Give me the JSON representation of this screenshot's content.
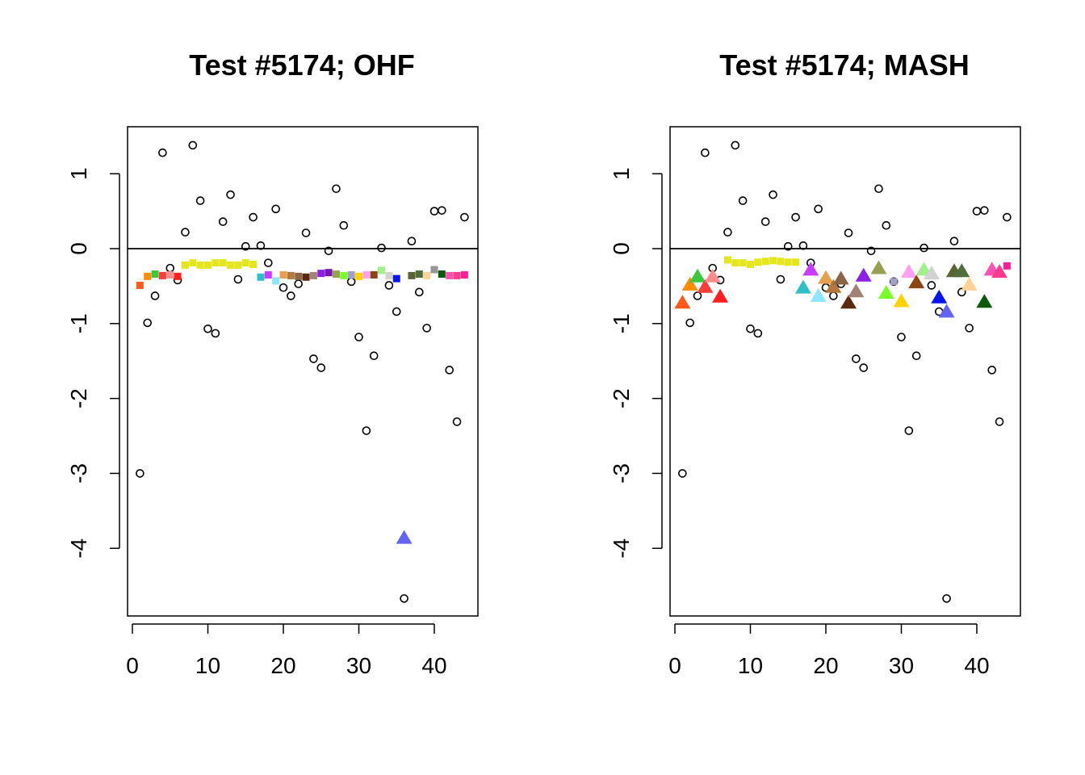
{
  "chart_data": [
    {
      "type": "scatter",
      "title": "Test #5174; OHF",
      "xlabel": "",
      "ylabel": "",
      "xlim": [
        0,
        44
      ],
      "ylim": [
        -4.75,
        1.65
      ],
      "xticks": [
        0,
        10,
        20,
        30,
        40
      ],
      "xtick_labels": [
        "0",
        "10",
        "20",
        "30",
        "40"
      ],
      "yticks": [
        1,
        0,
        -1,
        -2,
        -3,
        -4
      ],
      "ytick_labels": [
        "1",
        "0",
        "-1",
        "-2",
        "-3",
        "-4"
      ],
      "hline": 0,
      "grid": false,
      "series": [
        {
          "marker": "open-circle",
          "color": "#000000",
          "x": [
            1,
            2,
            3,
            4,
            5,
            6,
            7,
            8,
            9,
            10,
            11,
            12,
            13,
            14,
            15,
            16,
            17,
            18,
            19,
            20,
            21,
            22,
            23,
            24,
            25,
            26,
            27,
            28,
            29,
            30,
            31,
            32,
            33,
            34,
            35,
            36,
            37,
            38,
            39,
            40,
            41,
            42,
            43,
            44
          ],
          "y": [
            -3.0,
            -0.99,
            -0.63,
            1.28,
            -0.26,
            -0.42,
            0.22,
            1.38,
            0.64,
            -1.07,
            -1.13,
            0.36,
            0.72,
            -0.41,
            0.03,
            0.42,
            0.04,
            -0.19,
            0.53,
            -0.52,
            -0.63,
            -0.47,
            0.21,
            -1.47,
            -1.59,
            -0.03,
            0.8,
            0.31,
            -0.44,
            -1.18,
            -2.43,
            -1.43,
            0.01,
            -0.49,
            -0.84,
            -4.67,
            0.1,
            -0.58,
            -1.06,
            0.5,
            0.51,
            -1.62,
            -2.31,
            0.42
          ]
        },
        {
          "marker": "filled-square",
          "x": [
            1,
            2,
            3,
            4,
            5,
            6,
            7,
            8,
            9,
            10,
            11,
            12,
            13,
            14,
            15,
            16,
            17,
            18,
            19,
            20,
            21,
            22,
            23,
            24,
            25,
            26,
            27,
            28,
            29,
            30,
            31,
            32,
            33,
            34,
            35,
            37,
            38,
            39,
            40,
            41,
            42,
            43,
            44
          ],
          "y": [
            -0.49,
            -0.37,
            -0.34,
            -0.36,
            -0.35,
            -0.37,
            -0.22,
            -0.19,
            -0.22,
            -0.22,
            -0.19,
            -0.19,
            -0.22,
            -0.22,
            -0.19,
            -0.21,
            -0.38,
            -0.35,
            -0.43,
            -0.35,
            -0.36,
            -0.37,
            -0.38,
            -0.36,
            -0.33,
            -0.32,
            -0.34,
            -0.36,
            -0.35,
            -0.37,
            -0.35,
            -0.35,
            -0.29,
            -0.36,
            -0.4,
            -0.36,
            -0.34,
            -0.36,
            -0.28,
            -0.34,
            -0.36,
            -0.36,
            -0.35
          ],
          "colors": [
            "#FF5A1A",
            "#FF8C00",
            "#3CC83C",
            "#FF3C3C",
            "#FF8C8C",
            "#FF1E1E",
            "#E6E61E",
            "#E6E61E",
            "#E6E61E",
            "#E6E61E",
            "#E6E61E",
            "#E6E61E",
            "#E6E61E",
            "#E6E61E",
            "#E6E61E",
            "#E6E61E",
            "#2DBEC8",
            "#C83CFF",
            "#8CE6FF",
            "#E6A050",
            "#B4783C",
            "#8C6446",
            "#5A2810",
            "#A08278",
            "#8C1EE6",
            "#7814B4",
            "#96A050",
            "#78FF28",
            "#A0A0C8",
            "#FFD200",
            "#FFA0F0",
            "#8C4614",
            "#A0F08C",
            "#D2D2D2",
            "#0A14F0",
            "#5A6432",
            "#506E3C",
            "#FFD296",
            "#969696",
            "#0A5A0A",
            "#FF50B4",
            "#FF3C8C",
            "#FF1E96"
          ]
        },
        {
          "marker": "filled-triangle",
          "x": [
            36
          ],
          "y": [
            -3.87
          ],
          "colors": [
            "#6464F0"
          ]
        }
      ]
    },
    {
      "type": "scatter",
      "title": "Test #5174; MASH",
      "xlabel": "",
      "ylabel": "",
      "xlim": [
        0,
        44
      ],
      "ylim": [
        -4.75,
        1.65
      ],
      "xticks": [
        0,
        10,
        20,
        30,
        40
      ],
      "xtick_labels": [
        "0",
        "10",
        "20",
        "30",
        "40"
      ],
      "yticks": [
        1,
        0,
        -1,
        -2,
        -3,
        -4
      ],
      "ytick_labels": [
        "1",
        "0",
        "-1",
        "-2",
        "-3",
        "-4"
      ],
      "hline": 0,
      "grid": false,
      "series": [
        {
          "marker": "open-circle",
          "color": "#000000",
          "x": [
            1,
            2,
            3,
            4,
            5,
            6,
            7,
            8,
            9,
            10,
            11,
            12,
            13,
            14,
            15,
            16,
            17,
            18,
            19,
            20,
            21,
            22,
            23,
            24,
            25,
            26,
            27,
            28,
            29,
            30,
            31,
            32,
            33,
            34,
            35,
            36,
            37,
            38,
            39,
            40,
            41,
            42,
            43,
            44
          ],
          "y": [
            -3.0,
            -0.99,
            -0.63,
            1.28,
            -0.26,
            -0.42,
            0.22,
            1.38,
            0.64,
            -1.07,
            -1.13,
            0.36,
            0.72,
            -0.41,
            0.03,
            0.42,
            0.04,
            -0.19,
            0.53,
            -0.52,
            -0.63,
            -0.47,
            0.21,
            -1.47,
            -1.59,
            -0.03,
            0.8,
            0.31,
            -0.44,
            -1.18,
            -2.43,
            -1.43,
            0.01,
            -0.49,
            -0.84,
            -4.67,
            0.1,
            -0.58,
            -1.06,
            0.5,
            0.51,
            -1.62,
            -2.31,
            0.42
          ]
        },
        {
          "marker": "filled-square",
          "x": [
            7,
            8,
            9,
            10,
            11,
            12,
            13,
            14,
            15,
            16,
            29,
            44
          ],
          "y": [
            -0.15,
            -0.19,
            -0.19,
            -0.21,
            -0.18,
            -0.17,
            -0.16,
            -0.17,
            -0.18,
            -0.18,
            -0.44,
            -0.23
          ],
          "colors": [
            "#E6E61E",
            "#E6E61E",
            "#E6E61E",
            "#E6E61E",
            "#E6E61E",
            "#E6E61E",
            "#E6E61E",
            "#E6E61E",
            "#E6E61E",
            "#E6E61E",
            "#A0A0C8",
            "#FF1E96"
          ]
        },
        {
          "marker": "filled-triangle",
          "x": [
            1,
            2,
            3,
            4,
            5,
            6,
            17,
            18,
            19,
            20,
            21,
            22,
            23,
            24,
            25,
            27,
            28,
            30,
            31,
            32,
            33,
            34,
            35,
            36,
            37,
            38,
            39,
            41,
            42,
            43
          ],
          "y": [
            -0.73,
            -0.49,
            -0.38,
            -0.52,
            -0.38,
            -0.65,
            -0.53,
            -0.29,
            -0.64,
            -0.4,
            -0.52,
            -0.41,
            -0.73,
            -0.58,
            -0.37,
            -0.27,
            -0.6,
            -0.71,
            -0.32,
            -0.46,
            -0.29,
            -0.34,
            -0.66,
            -0.85,
            -0.31,
            -0.31,
            -0.49,
            -0.72,
            -0.29,
            -0.32
          ],
          "colors": [
            "#FF5A1A",
            "#FF8C00",
            "#3CC83C",
            "#FF3C3C",
            "#FF8C8C",
            "#FF1E1E",
            "#2DBEC8",
            "#C83CFF",
            "#8CE6FF",
            "#E6A050",
            "#B4783C",
            "#8C6446",
            "#5A2810",
            "#A08278",
            "#8C1EE6",
            "#96A050",
            "#78FF28",
            "#FFD200",
            "#FFA0F0",
            "#8C4614",
            "#A0F08C",
            "#D2D2D2",
            "#0A14F0",
            "#6464F0",
            "#5A6432",
            "#506E3C",
            "#FFD296",
            "#0A5A0A",
            "#FF50B4",
            "#FF3C8C"
          ]
        }
      ]
    }
  ]
}
